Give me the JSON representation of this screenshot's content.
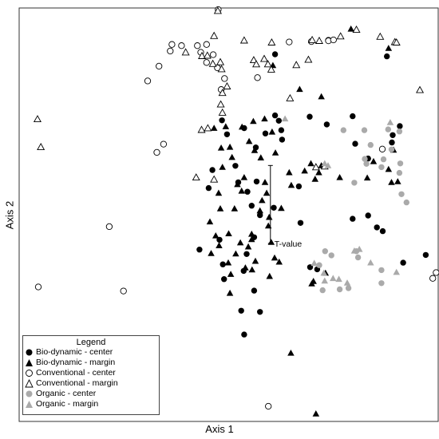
{
  "chart_data": {
    "type": "scatter",
    "xlabel": "Axis 1",
    "ylabel": "Axis 2",
    "xlim": [
      0,
      100
    ],
    "ylim": [
      0,
      100
    ],
    "grid": false,
    "legend_title": "Legend",
    "legend_placement": "bottom-left",
    "annotation": "T-value",
    "annotation_segment": {
      "x": 60,
      "y_start": 43,
      "y_end": 62
    },
    "series": [
      {
        "name": "Bio-dynamic - center",
        "marker": "circle",
        "filled": true,
        "color": "#000000",
        "points": [
          [
            87.9,
            88.6
          ],
          [
            61.1,
            89.1
          ],
          [
            48.4,
            73.0
          ],
          [
            49.6,
            69.6
          ],
          [
            53.7,
            71.1
          ],
          [
            61.1,
            74.2
          ],
          [
            62.0,
            72.9
          ],
          [
            62.6,
            70.6
          ],
          [
            58.8,
            69.8
          ],
          [
            56.5,
            66.4
          ],
          [
            62.8,
            68.3
          ],
          [
            69.4,
            73.9
          ],
          [
            73.5,
            72.0
          ],
          [
            79.7,
            74.0
          ],
          [
            80.3,
            67.3
          ],
          [
            89.3,
            69.4
          ],
          [
            91.0,
            71.6
          ],
          [
            89.1,
            67.6
          ],
          [
            83.4,
            63.7
          ],
          [
            46.1,
            60.9
          ],
          [
            45.2,
            56.5
          ],
          [
            51.6,
            61.9
          ],
          [
            52.3,
            57.9
          ],
          [
            56.7,
            58.1
          ],
          [
            54.5,
            55.6
          ],
          [
            55.5,
            52.2
          ],
          [
            57.5,
            49.9
          ],
          [
            60.8,
            51.7
          ],
          [
            66.8,
            56.9
          ],
          [
            67.2,
            48.0
          ],
          [
            79.7,
            49.0
          ],
          [
            83.4,
            49.8
          ],
          [
            85.5,
            46.9
          ],
          [
            86.9,
            46.0
          ],
          [
            97.2,
            40.2
          ],
          [
            91.8,
            38.3
          ],
          [
            43.0,
            41.5
          ],
          [
            47.8,
            43.9
          ],
          [
            48.6,
            37.9
          ],
          [
            54.3,
            40.4
          ],
          [
            56.1,
            44.5
          ],
          [
            48.9,
            34.3
          ],
          [
            53.6,
            36.3
          ],
          [
            56.1,
            31.5
          ],
          [
            53.0,
            26.6
          ],
          [
            57.5,
            26.3
          ],
          [
            69.5,
            37.2
          ],
          [
            71.2,
            36.7
          ],
          [
            53.7,
            20.8
          ]
        ]
      },
      {
        "name": "Bio-dynamic - margin",
        "marker": "triangle",
        "filled": true,
        "color": "#000000",
        "points": [
          [
            79.3,
            95.3
          ],
          [
            88.3,
            90.6
          ],
          [
            60.6,
            86.4
          ],
          [
            67.0,
            80.6
          ],
          [
            72.2,
            78.8
          ],
          [
            46.5,
            71.1
          ],
          [
            49.3,
            71.5
          ],
          [
            53.2,
            71.4
          ],
          [
            55.9,
            72.8
          ],
          [
            58.6,
            73.4
          ],
          [
            60.4,
            70.2
          ],
          [
            48.2,
            66.3
          ],
          [
            50.3,
            66.5
          ],
          [
            50.8,
            64.0
          ],
          [
            54.9,
            67.9
          ],
          [
            56.2,
            65.7
          ],
          [
            57.7,
            63.9
          ],
          [
            61.2,
            65.1
          ],
          [
            48.5,
            61.6
          ],
          [
            71.6,
            60.3
          ],
          [
            72.2,
            62.0
          ],
          [
            76.6,
            59.1
          ],
          [
            89.5,
            65.8
          ],
          [
            84.7,
            63.0
          ],
          [
            88.3,
            61.1
          ],
          [
            83.2,
            59.0
          ],
          [
            89.0,
            57.9
          ],
          [
            90.5,
            58.1
          ],
          [
            52.1,
            57.4
          ],
          [
            53.7,
            59.1
          ],
          [
            58.7,
            57.9
          ],
          [
            47.6,
            55.3
          ],
          [
            48.0,
            51.5
          ],
          [
            51.4,
            51.5
          ],
          [
            53.1,
            55.8
          ],
          [
            58.0,
            53.5
          ],
          [
            59.1,
            55.3
          ],
          [
            64.5,
            60.3
          ],
          [
            68.2,
            60.7
          ],
          [
            65.0,
            57.2
          ],
          [
            69.7,
            62.5
          ],
          [
            70.7,
            58.7
          ],
          [
            57.5,
            51.0
          ],
          [
            59.7,
            49.4
          ],
          [
            62.6,
            51.6
          ],
          [
            45.5,
            48.3
          ],
          [
            46.9,
            44.9
          ],
          [
            47.7,
            42.5
          ],
          [
            50.0,
            45.4
          ],
          [
            52.8,
            43.2
          ],
          [
            55.5,
            45.3
          ],
          [
            51.7,
            40.5
          ],
          [
            54.7,
            42.2
          ],
          [
            56.4,
            38.7
          ],
          [
            59.5,
            47.3
          ],
          [
            45.8,
            40.6
          ],
          [
            49.9,
            38.3
          ],
          [
            50.5,
            35.5
          ],
          [
            54.0,
            37.1
          ],
          [
            55.6,
            36.6
          ],
          [
            50.3,
            30.9
          ],
          [
            60.2,
            43.3
          ],
          [
            61.0,
            39.5
          ],
          [
            69.9,
            33.2
          ],
          [
            70.3,
            33.8
          ],
          [
            73.2,
            35.8
          ],
          [
            59.8,
            35.0
          ],
          [
            62.1,
            38.5
          ],
          [
            55.5,
            44.0
          ],
          [
            64.9,
            16.3
          ],
          [
            70.9,
            1.5
          ]
        ]
      },
      {
        "name": "Conventional - center",
        "marker": "circle",
        "filled": false,
        "color": "#000000",
        "points": [
          [
            47.5,
            100.0
          ],
          [
            36.4,
            91.5
          ],
          [
            38.7,
            91.2
          ],
          [
            42.5,
            91.2
          ],
          [
            44.7,
            91.5
          ],
          [
            36.0,
            89.9
          ],
          [
            43.3,
            89.6
          ],
          [
            46.3,
            89.0
          ],
          [
            44.7,
            87.1
          ],
          [
            33.3,
            86.2
          ],
          [
            47.3,
            85.8
          ],
          [
            30.6,
            82.6
          ],
          [
            49.0,
            83.2
          ],
          [
            48.2,
            80.5
          ],
          [
            56.9,
            83.4
          ],
          [
            64.5,
            92.1
          ],
          [
            69.8,
            92.2
          ],
          [
            73.9,
            92.5
          ],
          [
            73.9,
            92.4
          ],
          [
            75.1,
            92.6
          ],
          [
            34.4,
            67.2
          ],
          [
            32.8,
            65.2
          ],
          [
            86.8,
            66.0
          ],
          [
            21.4,
            47.1
          ],
          [
            4.4,
            32.4
          ],
          [
            24.8,
            31.4
          ],
          [
            30.3,
            18.3
          ],
          [
            59.5,
            3.3
          ],
          [
            99.7,
            35.9
          ],
          [
            98.9,
            34.5
          ]
        ]
      },
      {
        "name": "Conventional - margin",
        "marker": "triangle",
        "filled": false,
        "color": "#000000",
        "points": [
          [
            80.6,
            95.1
          ],
          [
            47.4,
            99.7
          ],
          [
            46.5,
            93.6
          ],
          [
            53.7,
            92.5
          ],
          [
            60.3,
            92.0
          ],
          [
            70.0,
            92.6
          ],
          [
            71.7,
            92.4
          ],
          [
            76.8,
            93.5
          ],
          [
            86.3,
            93.4
          ],
          [
            89.8,
            92.1
          ],
          [
            90.2,
            92.0
          ],
          [
            39.7,
            89.6
          ],
          [
            43.6,
            88.7
          ],
          [
            44.9,
            88.8
          ],
          [
            48.0,
            87.2
          ],
          [
            56.0,
            87.7
          ],
          [
            58.5,
            88.0
          ],
          [
            69.1,
            87.8
          ],
          [
            46.2,
            86.8
          ],
          [
            48.3,
            85.5
          ],
          [
            49.6,
            81.3
          ],
          [
            56.6,
            86.7
          ],
          [
            59.4,
            86.7
          ],
          [
            60.2,
            85.4
          ],
          [
            66.2,
            86.5
          ],
          [
            48.5,
            79.7
          ],
          [
            48.1,
            76.9
          ],
          [
            48.5,
            74.9
          ],
          [
            64.7,
            78.4
          ],
          [
            95.8,
            80.4
          ],
          [
            4.2,
            73.3
          ],
          [
            5.0,
            66.5
          ],
          [
            43.5,
            70.7
          ],
          [
            45.0,
            71.1
          ],
          [
            70.9,
            61.6
          ],
          [
            73.0,
            61.8
          ],
          [
            42.2,
            59.1
          ],
          [
            46.5,
            58.6
          ]
        ]
      },
      {
        "name": "Organic - center",
        "marker": "circle",
        "filled": true,
        "color": "#aaaaaa",
        "points": [
          [
            77.5,
            70.6
          ],
          [
            82.5,
            70.6
          ],
          [
            88.2,
            70.8
          ],
          [
            90.9,
            70.3
          ],
          [
            84.0,
            67.0
          ],
          [
            82.6,
            63.6
          ],
          [
            87.1,
            63.5
          ],
          [
            89.0,
            65.9
          ],
          [
            91.1,
            62.5
          ],
          [
            90.9,
            60.2
          ],
          [
            80.1,
            57.8
          ],
          [
            91.4,
            55.0
          ],
          [
            92.6,
            53.0
          ],
          [
            83.0,
            62.4
          ],
          [
            86.6,
            61.6
          ],
          [
            73.1,
            41.1
          ],
          [
            74.6,
            40.1
          ],
          [
            71.7,
            37.7
          ],
          [
            80.6,
            41.1
          ],
          [
            81.0,
            39.6
          ],
          [
            86.6,
            36.5
          ],
          [
            86.6,
            33.3
          ],
          [
            72.5,
            31.6
          ],
          [
            76.6,
            31.8
          ],
          [
            78.7,
            32.1
          ]
        ]
      },
      {
        "name": "Organic - margin",
        "marker": "triangle",
        "filled": true,
        "color": "#aaaaaa",
        "points": [
          [
            63.5,
            73.4
          ],
          [
            88.7,
            72.5
          ],
          [
            73.0,
            62.5
          ],
          [
            73.8,
            62.0
          ],
          [
            80.1,
            41.2
          ],
          [
            81.3,
            41.6
          ],
          [
            84.0,
            38.3
          ],
          [
            70.5,
            38.2
          ],
          [
            72.8,
            35.8
          ],
          [
            73.0,
            33.9
          ],
          [
            75.0,
            34.5
          ],
          [
            76.4,
            34.3
          ],
          [
            78.4,
            33.4
          ],
          [
            90.2,
            36.0
          ]
        ]
      }
    ]
  },
  "legend": {
    "title": "Legend",
    "items": [
      {
        "label": "Bio-dynamic - center"
      },
      {
        "label": "Bio-dynamic - margin"
      },
      {
        "label": "Conventional - center"
      },
      {
        "label": "Conventional - margin"
      },
      {
        "label": "Organic - center"
      },
      {
        "label": "Organic - margin"
      }
    ]
  }
}
